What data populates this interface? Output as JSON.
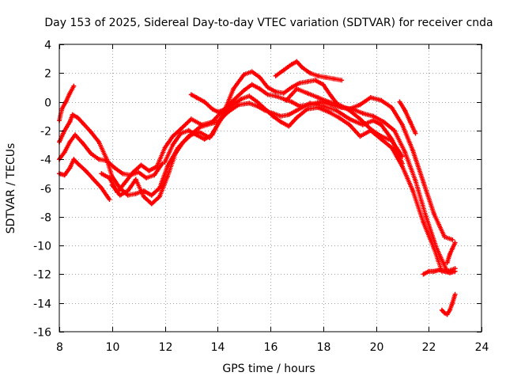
{
  "chart_data": {
    "type": "scatter",
    "title": "Day 153 of 2025, Sidereal Day-to-day VTEC variation (SDTVAR) for receiver cnda",
    "xlabel": "GPS time / hours",
    "ylabel": "SDTVAR / TECUs",
    "xlim": [
      8,
      24
    ],
    "ylim": [
      -16,
      4
    ],
    "x_ticks": [
      8,
      10,
      12,
      14,
      16,
      18,
      20,
      22,
      24
    ],
    "y_ticks": [
      -16,
      -14,
      -12,
      -10,
      -8,
      -6,
      -4,
      -2,
      0,
      2,
      4
    ],
    "grid": true,
    "marker": "+",
    "color": "#ff0000",
    "series": [
      {
        "name": "trace-1",
        "x": [
          8.0,
          8.1,
          8.25,
          8.4,
          8.55
        ],
        "y": [
          -1.3,
          -0.5,
          0.0,
          0.6,
          1.1
        ]
      },
      {
        "name": "trace-2",
        "x": [
          8.0,
          8.2,
          8.4,
          8.55,
          8.7,
          9.0,
          9.3,
          9.6,
          9.9
        ],
        "y": [
          -5.0,
          -5.1,
          -4.6,
          -4.0,
          -4.3,
          -4.8,
          -5.4,
          -6.0,
          -6.8
        ]
      },
      {
        "name": "trace-3",
        "x": [
          8.0,
          8.2,
          8.4,
          8.6,
          8.9,
          9.2,
          9.5,
          9.8,
          10.1,
          10.4,
          10.7,
          11.0,
          11.3,
          11.6,
          11.9
        ],
        "y": [
          -4.0,
          -3.5,
          -2.8,
          -2.3,
          -2.9,
          -3.6,
          -4.0,
          -4.1,
          -4.6,
          -5.0,
          -5.1,
          -4.9,
          -5.3,
          -5.1,
          -4.3
        ]
      },
      {
        "name": "trace-4",
        "x": [
          8.0,
          8.2,
          8.4,
          8.5,
          8.7,
          8.9,
          9.2,
          9.5,
          9.8,
          10.0,
          10.3,
          10.6,
          10.9,
          11.2,
          11.5,
          11.8,
          12.1,
          12.5,
          12.9,
          13.3,
          13.6,
          14.0,
          14.4,
          14.8,
          15.2,
          15.5,
          15.8,
          16.1,
          16.4,
          16.7,
          17.0,
          17.5,
          18.0,
          18.5,
          19.0,
          19.5,
          19.9,
          20.2,
          20.6,
          21.0
        ],
        "y": [
          -2.8,
          -2.0,
          -1.4,
          -0.9,
          -1.1,
          -1.5,
          -2.1,
          -2.8,
          -4.0,
          -5.2,
          -6.0,
          -6.5,
          -6.4,
          -6.2,
          -6.5,
          -6.0,
          -4.5,
          -3.2,
          -2.4,
          -1.8,
          -1.6,
          -1.4,
          -0.7,
          -0.2,
          -0.1,
          -0.3,
          -0.6,
          -0.8,
          -1.0,
          -0.9,
          -0.6,
          -0.1,
          -0.3,
          -0.6,
          -1.2,
          -1.6,
          -1.3,
          -1.6,
          -2.6,
          -4.3
        ]
      },
      {
        "name": "trace-5",
        "x": [
          9.6,
          9.9,
          10.2,
          10.5,
          10.8,
          11.1,
          11.4,
          11.7,
          12.0,
          12.3,
          12.6,
          13.0,
          13.4,
          13.8,
          14.2,
          14.6,
          15.0,
          15.3,
          15.6,
          15.9,
          16.2,
          16.5,
          16.8,
          17.1,
          17.5,
          17.9,
          18.3,
          18.7,
          19.1,
          19.5,
          19.9,
          20.3,
          20.7,
          21.1,
          21.5,
          21.9,
          22.3,
          22.7,
          23.0
        ],
        "y": [
          -5.0,
          -5.3,
          -6.3,
          -5.6,
          -4.9,
          -4.4,
          -4.8,
          -4.5,
          -3.2,
          -2.4,
          -1.9,
          -1.2,
          -1.6,
          -1.4,
          -0.6,
          0.1,
          0.8,
          1.2,
          0.9,
          0.5,
          0.4,
          0.2,
          0.0,
          -0.3,
          -0.2,
          0.0,
          -0.2,
          -0.4,
          -0.5,
          -0.8,
          -1.0,
          -1.4,
          -2.0,
          -3.5,
          -5.5,
          -8.0,
          -10.2,
          -11.8,
          -11.6
        ]
      },
      {
        "name": "trace-6",
        "x": [
          10.0,
          10.3,
          10.6,
          10.9,
          11.2,
          11.5,
          11.8,
          12.1,
          12.4,
          12.7,
          13.0,
          13.3,
          13.7,
          14.1,
          14.5,
          14.9,
          15.2,
          15.5,
          15.8,
          16.1,
          16.4,
          16.7,
          17.0,
          17.4,
          17.8,
          18.2,
          18.6,
          19.0,
          19.4,
          19.8,
          20.2,
          20.6,
          21.0,
          21.4,
          21.8,
          22.2,
          22.5
        ],
        "y": [
          -5.8,
          -6.5,
          -6.2,
          -5.4,
          -6.6,
          -7.1,
          -6.6,
          -5.2,
          -3.6,
          -2.8,
          -2.3,
          -2.1,
          -2.5,
          -1.3,
          -0.3,
          0.2,
          0.4,
          0.0,
          -0.5,
          -1.0,
          -1.4,
          -1.7,
          -1.1,
          -0.5,
          -0.4,
          -0.7,
          -1.1,
          -1.6,
          -2.4,
          -2.0,
          -2.6,
          -3.2,
          -4.5,
          -6.2,
          -8.4,
          -10.2,
          -11.8
        ]
      },
      {
        "name": "trace-7",
        "x": [
          12.0,
          12.3,
          12.6,
          12.9,
          13.2,
          13.5,
          13.8,
          14.2,
          14.6,
          15.0,
          15.3,
          15.6,
          15.9,
          16.2,
          16.5,
          16.8,
          17.1,
          17.4,
          17.7,
          18.0,
          18.3,
          18.6,
          19.0,
          19.4,
          19.8,
          20.2,
          20.6,
          21.0,
          21.4,
          21.8,
          22.2,
          22.6,
          22.9
        ],
        "y": [
          -4.2,
          -3.0,
          -2.2,
          -2.0,
          -2.3,
          -2.6,
          -2.3,
          -0.9,
          0.9,
          1.9,
          2.1,
          1.7,
          1.0,
          0.7,
          0.6,
          1.0,
          1.3,
          1.4,
          1.5,
          1.2,
          0.4,
          -0.3,
          -0.5,
          -0.2,
          0.3,
          0.1,
          -0.4,
          -1.6,
          -3.4,
          -5.6,
          -7.8,
          -9.4,
          -9.6
        ]
      },
      {
        "name": "trace-8",
        "x": [
          13.0,
          13.2,
          13.5,
          13.8,
          14.0,
          14.2
        ],
        "y": [
          0.5,
          0.3,
          0.0,
          -0.5,
          -0.7,
          -0.6
        ]
      },
      {
        "name": "trace-9",
        "x": [
          16.2,
          16.5,
          16.8,
          17.0,
          17.2,
          17.5,
          17.8,
          18.1,
          18.4,
          18.7
        ],
        "y": [
          1.8,
          2.2,
          2.6,
          2.8,
          2.4,
          2.0,
          1.8,
          1.7,
          1.6,
          1.5
        ]
      },
      {
        "name": "trace-10",
        "x": [
          16.6,
          17.0,
          17.4,
          17.8,
          18.2,
          18.6,
          19.0,
          19.4,
          19.8,
          20.2,
          20.6,
          21.0
        ],
        "y": [
          0.1,
          0.9,
          0.6,
          0.3,
          0.0,
          -0.2,
          -0.6,
          -1.2,
          -1.9,
          -2.4,
          -2.7,
          -3.8
        ]
      },
      {
        "name": "trace-11",
        "x": [
          21.8,
          22.0,
          22.2,
          22.4,
          22.6,
          22.8,
          23.0
        ],
        "y": [
          -12.0,
          -11.8,
          -11.8,
          -11.7,
          -11.8,
          -11.9,
          -11.8
        ]
      },
      {
        "name": "trace-12",
        "x": [
          22.5,
          22.6,
          22.7,
          22.8,
          22.9,
          23.0
        ],
        "y": [
          -14.5,
          -14.7,
          -14.8,
          -14.5,
          -14.0,
          -13.4
        ]
      },
      {
        "name": "trace-13",
        "x": [
          22.7,
          22.8,
          22.9,
          23.0
        ],
        "y": [
          -11.2,
          -10.6,
          -10.2,
          -9.8
        ]
      },
      {
        "name": "trace-14",
        "x": [
          20.9,
          21.1,
          21.3,
          21.5
        ],
        "y": [
          0.0,
          -0.6,
          -1.4,
          -2.2
        ]
      }
    ]
  }
}
